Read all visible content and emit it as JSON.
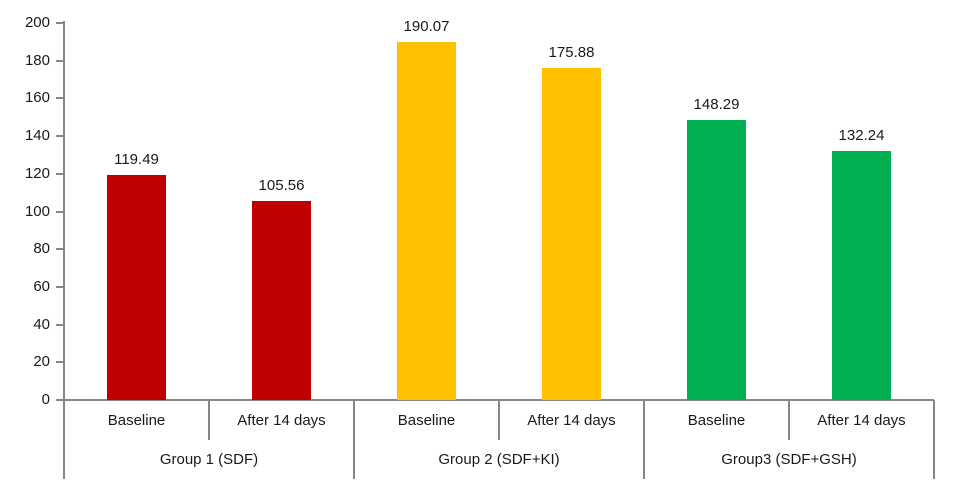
{
  "chart_data": {
    "type": "bar",
    "title": "",
    "legend": "none",
    "gridlines": false,
    "background": "#FFFFFF",
    "axis_color": "#868686",
    "text_color": "#1A1A1A",
    "y_axis": {
      "min": 0,
      "max": 200,
      "step": 20,
      "tick_labels": [
        "0",
        "20",
        "40",
        "60",
        "80",
        "100",
        "120",
        "140",
        "160",
        "180",
        "200"
      ]
    },
    "x_axis": {
      "level1_categories": [
        "Baseline",
        "After 14 days",
        "Baseline",
        "After 14 days",
        "Baseline",
        "After 14 days"
      ],
      "level2_categories": [
        "Group 1 (SDF)",
        "Group 2 (SDF+KI)",
        "Group3 (SDF+GSH)"
      ]
    },
    "groups": [
      {
        "label": "Group 1 (SDF)",
        "color": "#C00000",
        "bars": [
          {
            "category": "Baseline",
            "value": 119.49,
            "label": "119.49"
          },
          {
            "category": "After 14 days",
            "value": 105.56,
            "label": "105.56"
          }
        ]
      },
      {
        "label": "Group 2 (SDF+KI)",
        "color": "#FFC000",
        "bars": [
          {
            "category": "Baseline",
            "value": 190.07,
            "label": "190.07"
          },
          {
            "category": "After 14 days",
            "value": 175.88,
            "label": "175.88"
          }
        ]
      },
      {
        "label": "Group3 (SDF+GSH)",
        "color": "#00B050",
        "bars": [
          {
            "category": "Baseline",
            "value": 148.29,
            "label": "148.29"
          },
          {
            "category": "After 14 days",
            "value": 132.24,
            "label": "132.24"
          }
        ]
      }
    ]
  }
}
